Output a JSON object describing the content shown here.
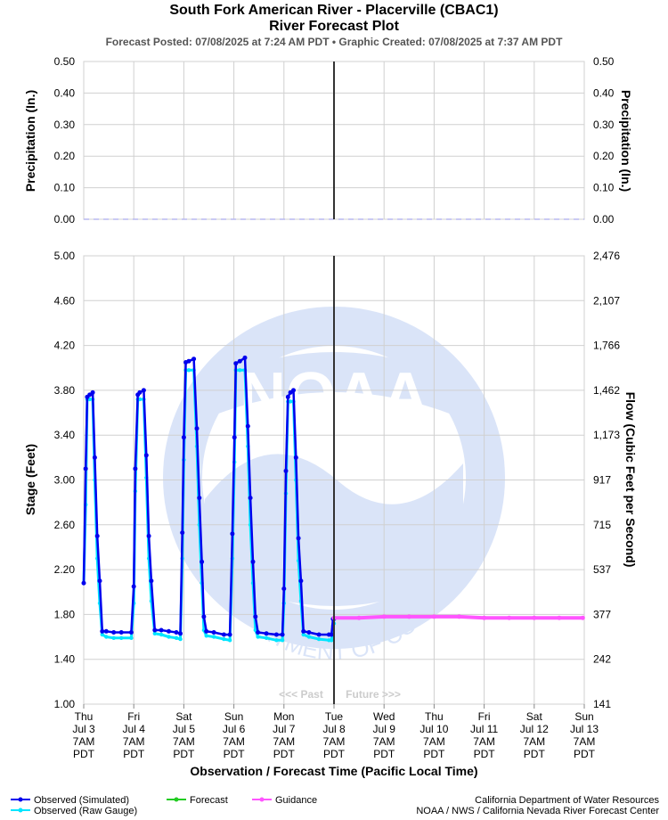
{
  "header": {
    "title": "South Fork American River - Placerville (CBAC1)",
    "subtitle": "River Forecast Plot",
    "posted": "Forecast Posted: 07/08/2025 at 7:24 AM PDT  •  Graphic Created: 07/08/2025 at 7:37 AM PDT"
  },
  "chart_data": [
    {
      "type": "line",
      "name": "precipitation",
      "ylabel_left": "Precipitation (In.)",
      "ylabel_right": "Precipitation (In.)",
      "ylim": [
        0,
        0.5
      ],
      "yticks": [
        "0.50",
        "0.40",
        "0.30",
        "0.20",
        "0.10",
        "0.00"
      ],
      "series": [
        {
          "name": "Precipitation",
          "color": "#b8b8f0",
          "style": "dashed",
          "values": [
            0.0,
            0.0
          ]
        }
      ]
    },
    {
      "type": "line",
      "name": "stage-flow",
      "ylabel_left": "Stage (Feet)",
      "ylabel_right": "Flow (Cubic Feet per Second)",
      "xlabel": "Observation / Forecast Time (Pacific Local Time)",
      "ylim": [
        1.0,
        5.0
      ],
      "yticks_left": [
        "5.00",
        "4.60",
        "4.20",
        "3.80",
        "3.40",
        "3.00",
        "2.60",
        "2.20",
        "1.80",
        "1.40",
        "1.00"
      ],
      "yticks_right": [
        "2,476",
        "2,107",
        "1,766",
        "1,462",
        "1,173",
        "917",
        "715",
        "537",
        "377",
        "242",
        "141"
      ],
      "xticks": [
        [
          "Thu",
          "Jul 3",
          "7AM",
          "PDT"
        ],
        [
          "Fri",
          "Jul 4",
          "7AM",
          "PDT"
        ],
        [
          "Sat",
          "Jul 5",
          "7AM",
          "PDT"
        ],
        [
          "Sun",
          "Jul 6",
          "7AM",
          "PDT"
        ],
        [
          "Mon",
          "Jul 7",
          "7AM",
          "PDT"
        ],
        [
          "Tue",
          "Jul 8",
          "7AM",
          "PDT"
        ],
        [
          "Wed",
          "Jul 9",
          "7AM",
          "PDT"
        ],
        [
          "Thu",
          "Jul 10",
          "7AM",
          "PDT"
        ],
        [
          "Fri",
          "Jul 11",
          "7AM",
          "PDT"
        ],
        [
          "Sat",
          "Jul 12",
          "7AM",
          "PDT"
        ],
        [
          "Sun",
          "Jul 13",
          "7AM",
          "PDT"
        ]
      ],
      "now_day": 5,
      "past_label": "<<< Past",
      "future_label": "Future >>>",
      "observed_simulated_points": [
        [
          0.0,
          2.08
        ],
        [
          0.04,
          3.1
        ],
        [
          0.07,
          3.74
        ],
        [
          0.12,
          3.76
        ],
        [
          0.18,
          3.78
        ],
        [
          0.22,
          3.2
        ],
        [
          0.27,
          2.5
        ],
        [
          0.32,
          2.1
        ],
        [
          0.37,
          1.65
        ],
        [
          0.45,
          1.65
        ],
        [
          0.6,
          1.64
        ],
        [
          0.75,
          1.64
        ],
        [
          0.95,
          1.64
        ],
        [
          1.0,
          2.05
        ],
        [
          1.03,
          3.1
        ],
        [
          1.08,
          3.76
        ],
        [
          1.12,
          3.78
        ],
        [
          1.2,
          3.8
        ],
        [
          1.25,
          3.22
        ],
        [
          1.3,
          2.5
        ],
        [
          1.35,
          2.1
        ],
        [
          1.42,
          1.66
        ],
        [
          1.55,
          1.66
        ],
        [
          1.7,
          1.65
        ],
        [
          1.85,
          1.64
        ],
        [
          1.93,
          1.63
        ],
        [
          1.97,
          2.53
        ],
        [
          2.0,
          3.38
        ],
        [
          2.04,
          4.05
        ],
        [
          2.1,
          4.06
        ],
        [
          2.2,
          4.08
        ],
        [
          2.26,
          3.46
        ],
        [
          2.31,
          2.84
        ],
        [
          2.36,
          2.27
        ],
        [
          2.4,
          1.78
        ],
        [
          2.45,
          1.65
        ],
        [
          2.6,
          1.64
        ],
        [
          2.8,
          1.62
        ],
        [
          2.92,
          1.62
        ],
        [
          2.97,
          2.52
        ],
        [
          3.01,
          3.38
        ],
        [
          3.04,
          4.04
        ],
        [
          3.12,
          4.06
        ],
        [
          3.22,
          4.09
        ],
        [
          3.28,
          3.48
        ],
        [
          3.33,
          2.84
        ],
        [
          3.38,
          2.27
        ],
        [
          3.43,
          1.78
        ],
        [
          3.48,
          1.64
        ],
        [
          3.65,
          1.63
        ],
        [
          3.85,
          1.62
        ],
        [
          3.97,
          1.62
        ],
        [
          4.0,
          2.03
        ],
        [
          4.04,
          3.08
        ],
        [
          4.08,
          3.74
        ],
        [
          4.13,
          3.78
        ],
        [
          4.19,
          3.8
        ],
        [
          4.24,
          3.2
        ],
        [
          4.29,
          2.48
        ],
        [
          4.34,
          2.1
        ],
        [
          4.39,
          1.65
        ],
        [
          4.5,
          1.64
        ],
        [
          4.7,
          1.62
        ],
        [
          4.9,
          1.62
        ],
        [
          4.95,
          1.62
        ],
        [
          4.98,
          1.76
        ],
        [
          5.0,
          1.76
        ]
      ],
      "observed_raw_points": [
        [
          0.0,
          2.08
        ],
        [
          0.04,
          2.78
        ],
        [
          0.07,
          3.72
        ],
        [
          0.12,
          3.72
        ],
        [
          0.18,
          3.72
        ],
        [
          0.22,
          3.0
        ],
        [
          0.27,
          2.3
        ],
        [
          0.32,
          1.9
        ],
        [
          0.37,
          1.62
        ],
        [
          0.45,
          1.6
        ],
        [
          0.6,
          1.59
        ],
        [
          0.75,
          1.59
        ],
        [
          0.95,
          1.59
        ],
        [
          1.0,
          1.9
        ],
        [
          1.03,
          2.9
        ],
        [
          1.08,
          3.72
        ],
        [
          1.12,
          3.72
        ],
        [
          1.2,
          3.72
        ],
        [
          1.25,
          3.02
        ],
        [
          1.3,
          2.3
        ],
        [
          1.35,
          1.92
        ],
        [
          1.42,
          1.63
        ],
        [
          1.55,
          1.62
        ],
        [
          1.7,
          1.6
        ],
        [
          1.85,
          1.59
        ],
        [
          1.93,
          1.58
        ],
        [
          1.97,
          2.3
        ],
        [
          2.0,
          3.18
        ],
        [
          2.04,
          3.98
        ],
        [
          2.1,
          3.98
        ],
        [
          2.2,
          3.98
        ],
        [
          2.26,
          3.3
        ],
        [
          2.31,
          2.6
        ],
        [
          2.36,
          2.08
        ],
        [
          2.4,
          1.66
        ],
        [
          2.45,
          1.61
        ],
        [
          2.6,
          1.6
        ],
        [
          2.8,
          1.58
        ],
        [
          2.92,
          1.57
        ],
        [
          2.97,
          2.3
        ],
        [
          3.01,
          3.16
        ],
        [
          3.04,
          3.98
        ],
        [
          3.12,
          3.98
        ],
        [
          3.22,
          3.98
        ],
        [
          3.28,
          3.3
        ],
        [
          3.33,
          2.6
        ],
        [
          3.38,
          2.08
        ],
        [
          3.43,
          1.66
        ],
        [
          3.48,
          1.6
        ],
        [
          3.65,
          1.59
        ],
        [
          3.85,
          1.57
        ],
        [
          3.97,
          1.57
        ],
        [
          4.0,
          1.9
        ],
        [
          4.04,
          2.88
        ],
        [
          4.08,
          3.7
        ],
        [
          4.13,
          3.7
        ],
        [
          4.19,
          3.7
        ],
        [
          4.24,
          3.0
        ],
        [
          4.29,
          2.28
        ],
        [
          4.34,
          1.92
        ],
        [
          4.39,
          1.62
        ],
        [
          4.5,
          1.6
        ],
        [
          4.7,
          1.58
        ],
        [
          4.9,
          1.57
        ],
        [
          4.95,
          1.57
        ],
        [
          4.98,
          1.7
        ],
        [
          5.0,
          1.72
        ]
      ],
      "guidance_points": [
        [
          5.0,
          1.77
        ],
        [
          5.5,
          1.77
        ],
        [
          6.0,
          1.78
        ],
        [
          6.5,
          1.78
        ],
        [
          7.0,
          1.78
        ],
        [
          7.5,
          1.78
        ],
        [
          8.0,
          1.77
        ],
        [
          8.5,
          1.77
        ],
        [
          9.0,
          1.77
        ],
        [
          9.5,
          1.77
        ],
        [
          9.97,
          1.77
        ]
      ],
      "colors": {
        "observed_simulated": "#0000ee",
        "observed_raw": "#00e5ff",
        "forecast": "#22cc22",
        "guidance": "#ff55ff",
        "now_line": "#333333"
      }
    }
  ],
  "legend": {
    "observed_simulated": "Observed (Simulated)",
    "observed_raw": "Observed (Raw Gauge)",
    "forecast": "Forecast",
    "guidance": "Guidance"
  },
  "credits": {
    "line1": "California Department of Water Resources",
    "line2": "NOAA / NWS / California Nevada River Forecast Center"
  },
  "watermark": {
    "logo_text": "NOAA",
    "top_arc": "NATIONAL OCEANIC AND ATMOSPHERIC ADMINISTRATION",
    "bottom_arc": "U.S. DEPARTMENT OF COMMERCE"
  }
}
